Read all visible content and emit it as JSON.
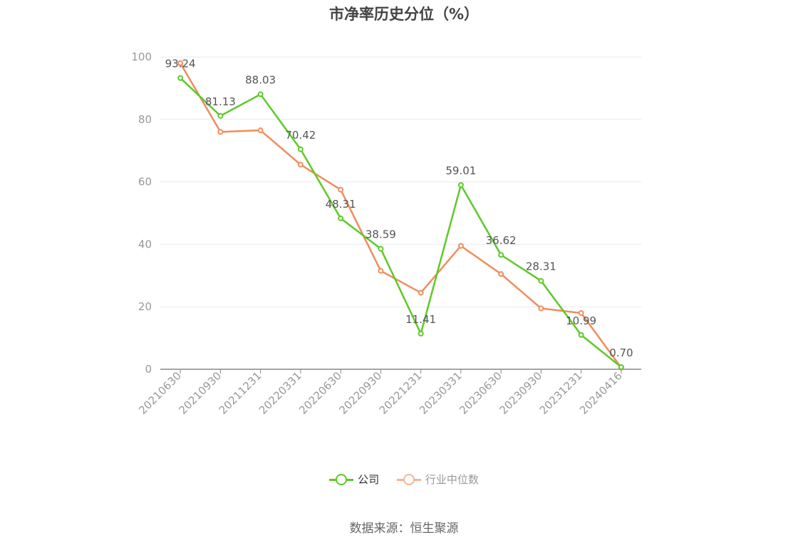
{
  "title": "市净率历史分位（%）",
  "source": "数据来源：恒生聚源",
  "colors": {
    "company": "#5ec928",
    "industry": "#f08c5c",
    "grid": "#e6e9f2",
    "axis": "#999999"
  },
  "chart_data": {
    "type": "line",
    "title": "市净率历史分位（%）",
    "categories": [
      "20210630",
      "20210930",
      "20211231",
      "20220331",
      "20220630",
      "20220930",
      "20221231",
      "20230331",
      "20230630",
      "20230930",
      "20231231",
      "20240416"
    ],
    "ylim": [
      0,
      100
    ],
    "yticks": [
      0,
      20,
      40,
      60,
      80,
      100
    ],
    "grid": true,
    "legend_position": "bottom",
    "series": [
      {
        "name": "公司",
        "color": "#5ec928",
        "show_labels": true,
        "values": [
          93.24,
          81.13,
          88.03,
          70.42,
          48.31,
          38.59,
          11.41,
          59.01,
          36.62,
          28.31,
          10.99,
          0.7
        ],
        "labels": [
          "93.24",
          "81.13",
          "88.03",
          "70.42",
          "48.31",
          "38.59",
          "11.41",
          "59.01",
          "36.62",
          "28.31",
          "10.99",
          "0.70"
        ]
      },
      {
        "name": "行业中位数",
        "color": "#f08c5c",
        "show_labels": false,
        "values": [
          98,
          76,
          76.5,
          65.5,
          57.5,
          31.5,
          24.5,
          39.5,
          30.5,
          19.5,
          18,
          0.5
        ]
      }
    ]
  },
  "legend": [
    {
      "label": "公司",
      "color": "#5ec928"
    },
    {
      "label": "行业中位数",
      "color": "#f08c5c"
    }
  ]
}
